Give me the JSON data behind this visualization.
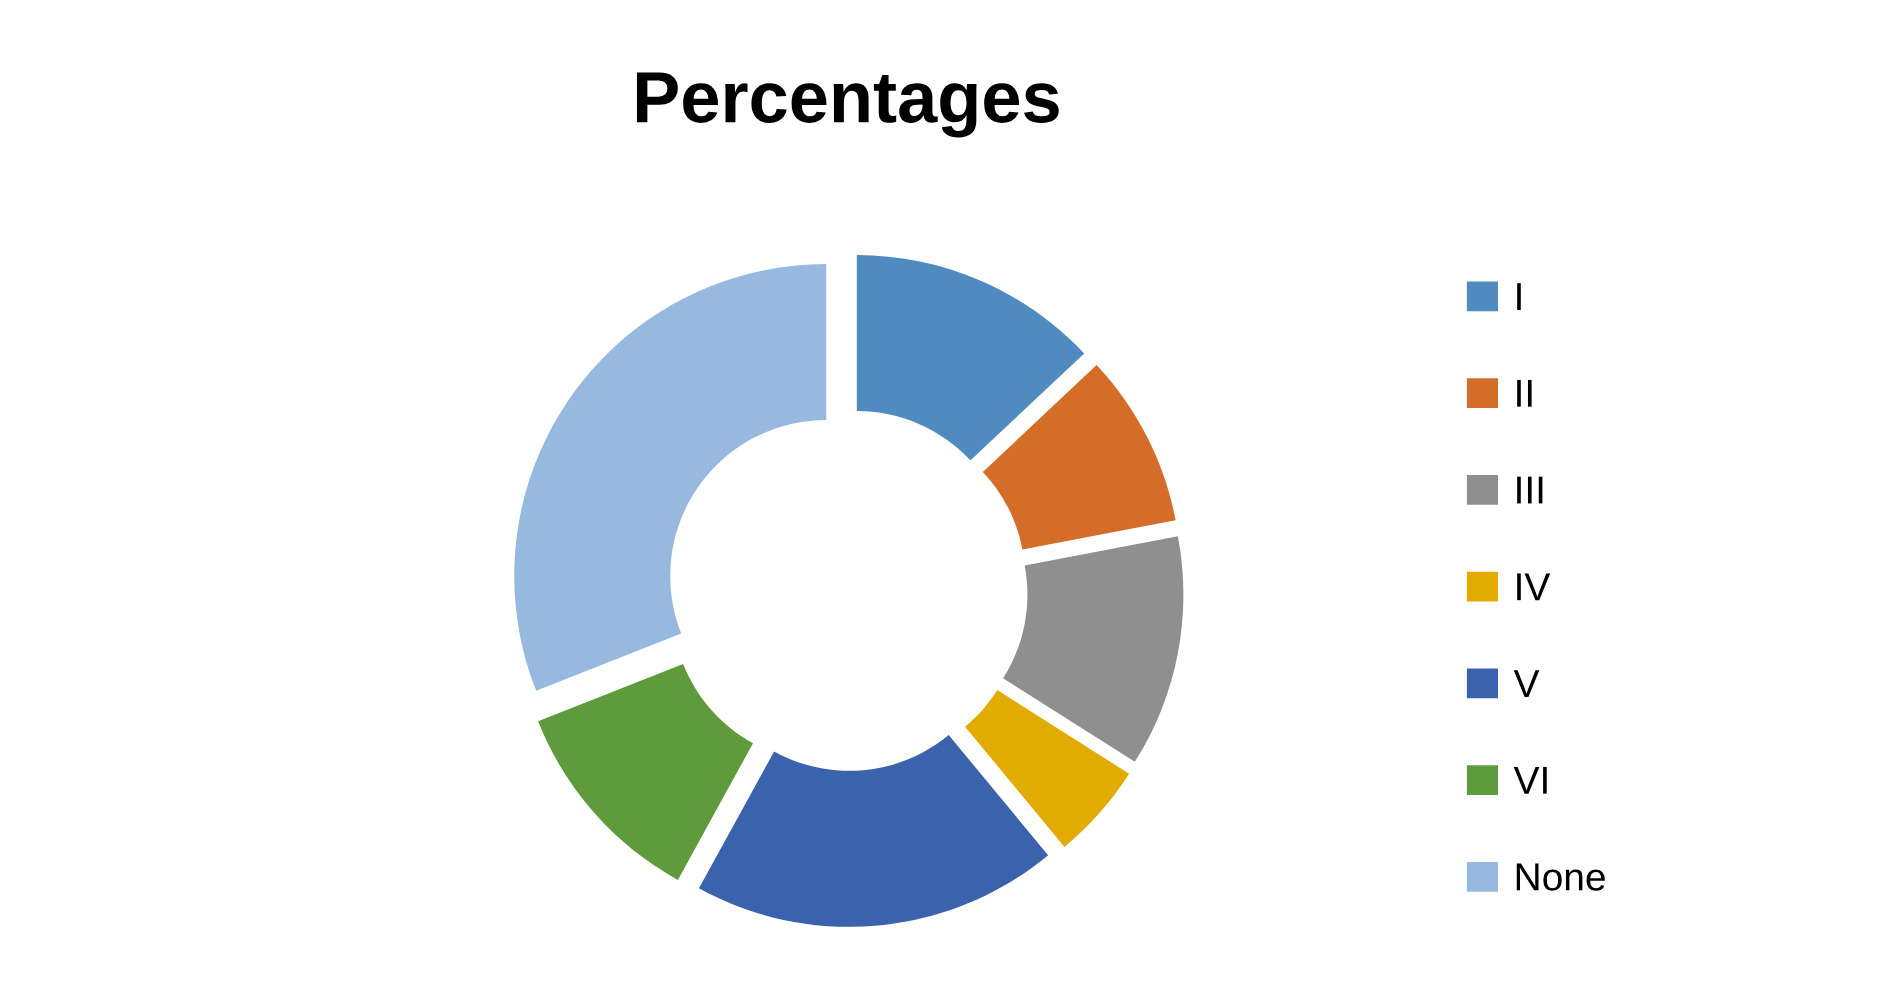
{
  "chart_data": {
    "type": "donut",
    "title": "Percentages",
    "categories": [
      "I",
      "II",
      "III",
      "IV",
      "V",
      "VI",
      "None"
    ],
    "values": [
      13,
      9,
      12,
      5,
      19,
      11,
      31
    ],
    "colors": [
      "#4f8bbf",
      "#d46d28",
      "#8f8f8f",
      "#e2ab00",
      "#3a62ad",
      "#5f9a3c",
      "#97b9e0"
    ],
    "legend": "right"
  }
}
